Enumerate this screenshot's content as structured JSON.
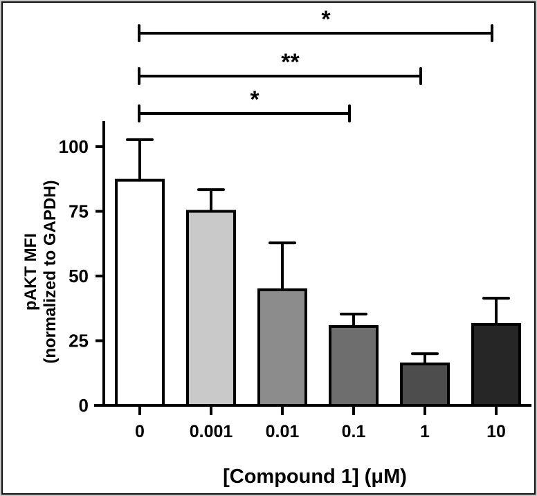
{
  "chart_data": {
    "type": "bar",
    "title": "",
    "xlabel": "[Compound 1] (μM)",
    "ylabel_line1": "pAKT MFI",
    "ylabel_line2": "(normalized to GAPDH)",
    "ylim": [
      0,
      110
    ],
    "yticks": [
      0,
      25,
      50,
      75,
      100
    ],
    "ytick_labels": [
      "0",
      "25",
      "50",
      "75",
      "100"
    ],
    "grid": false,
    "categories": [
      "0",
      "0.001",
      "0.01",
      "0.1",
      "1",
      "10"
    ],
    "values": [
      87,
      75,
      44.7,
      30.5,
      16,
      31.3
    ],
    "error_upper": [
      102.7,
      83.4,
      62.8,
      35.3,
      20,
      41.4
    ],
    "bar_colors": [
      "#ffffff",
      "#c9c9c9",
      "#8c8c8c",
      "#6e6e6e",
      "#4d4d4d",
      "#262626"
    ],
    "significance": [
      {
        "from": "0",
        "to": "0.1",
        "label": "*"
      },
      {
        "from": "0",
        "to": "1",
        "label": "**"
      },
      {
        "from": "0",
        "to": "10",
        "label": "*"
      }
    ]
  }
}
